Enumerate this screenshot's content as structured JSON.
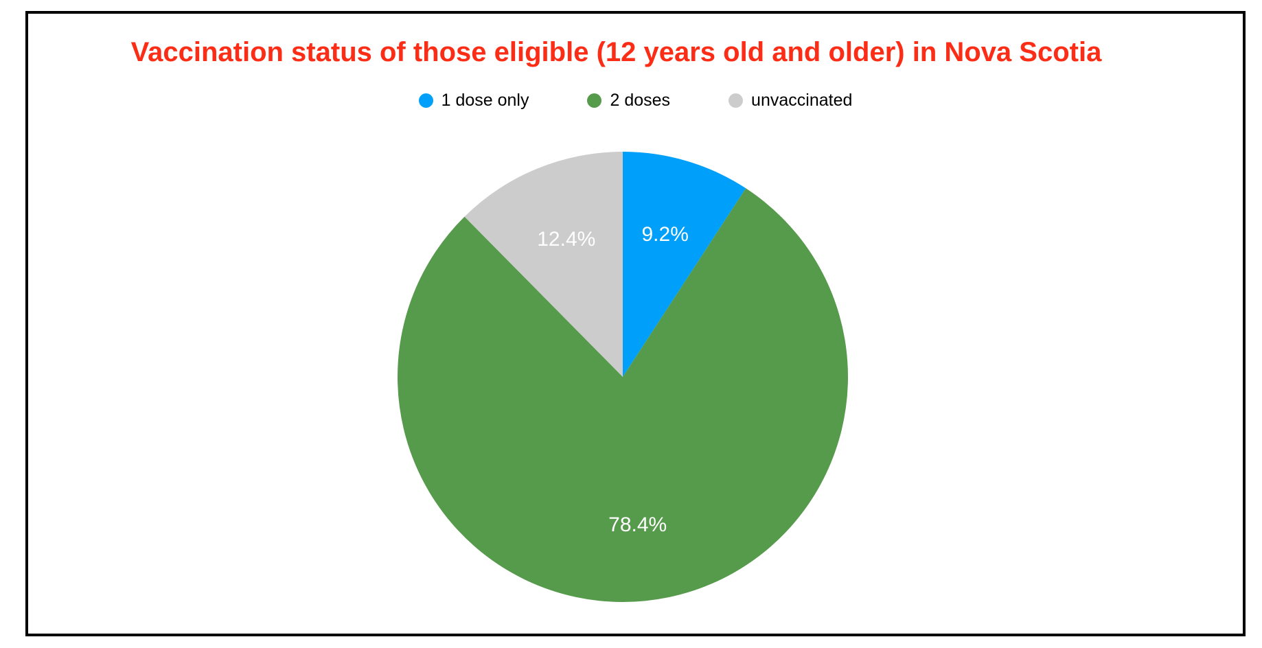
{
  "chart_data": {
    "type": "pie",
    "title": "Vaccination status of those eligible (12 years old and older) in Nova Scotia",
    "title_color": "#fb2d16",
    "categories": [
      "1 dose only",
      "2 doses",
      "unvaccinated"
    ],
    "values": [
      9.2,
      78.4,
      12.4
    ],
    "slice_labels": [
      "9.2%",
      "78.4%",
      "12.4%"
    ],
    "colors": [
      "#00a0fa",
      "#569a4b",
      "#cccccc"
    ],
    "slice_label_color": "#ffffff",
    "legend_position": "top-center",
    "start_angle": "12 o'clock",
    "direction": "clockwise",
    "label_radius_fraction": 0.66
  },
  "legend": {
    "items": [
      {
        "label": "1 dose only"
      },
      {
        "label": "2 doses"
      },
      {
        "label": "unvaccinated"
      }
    ]
  }
}
